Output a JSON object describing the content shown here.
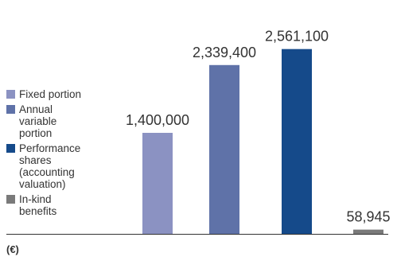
{
  "chart_data": {
    "type": "bar",
    "categories": [
      "Fixed portion",
      "Annual variable portion",
      "Performance shares (accounting valuation)",
      "In-kind benefits"
    ],
    "values": [
      1400000,
      2339400,
      2561100,
      58945
    ],
    "value_labels": [
      "1,400,000",
      "2,339,400",
      "2,561,100",
      "58,945"
    ],
    "colors": [
      "#8b92c2",
      "#5f72a8",
      "#154a8a",
      "#7a7a7a"
    ],
    "legend": [
      {
        "label_lines": [
          "Fixed portion"
        ],
        "color": "#8b92c2"
      },
      {
        "label_lines": [
          "Annual",
          "variable",
          "portion"
        ],
        "color": "#5f72a8"
      },
      {
        "label_lines": [
          "Performance",
          "shares",
          "(accounting",
          "valuation)"
        ],
        "color": "#154a8a"
      },
      {
        "label_lines": [
          "In-kind",
          "benefits"
        ],
        "color": "#7a7a7a"
      }
    ],
    "legend_position": "left",
    "unit_label": "(€)",
    "ylim": [
      0,
      2800000
    ],
    "grid": false,
    "title": "",
    "xlabel": "",
    "ylabel": ""
  }
}
